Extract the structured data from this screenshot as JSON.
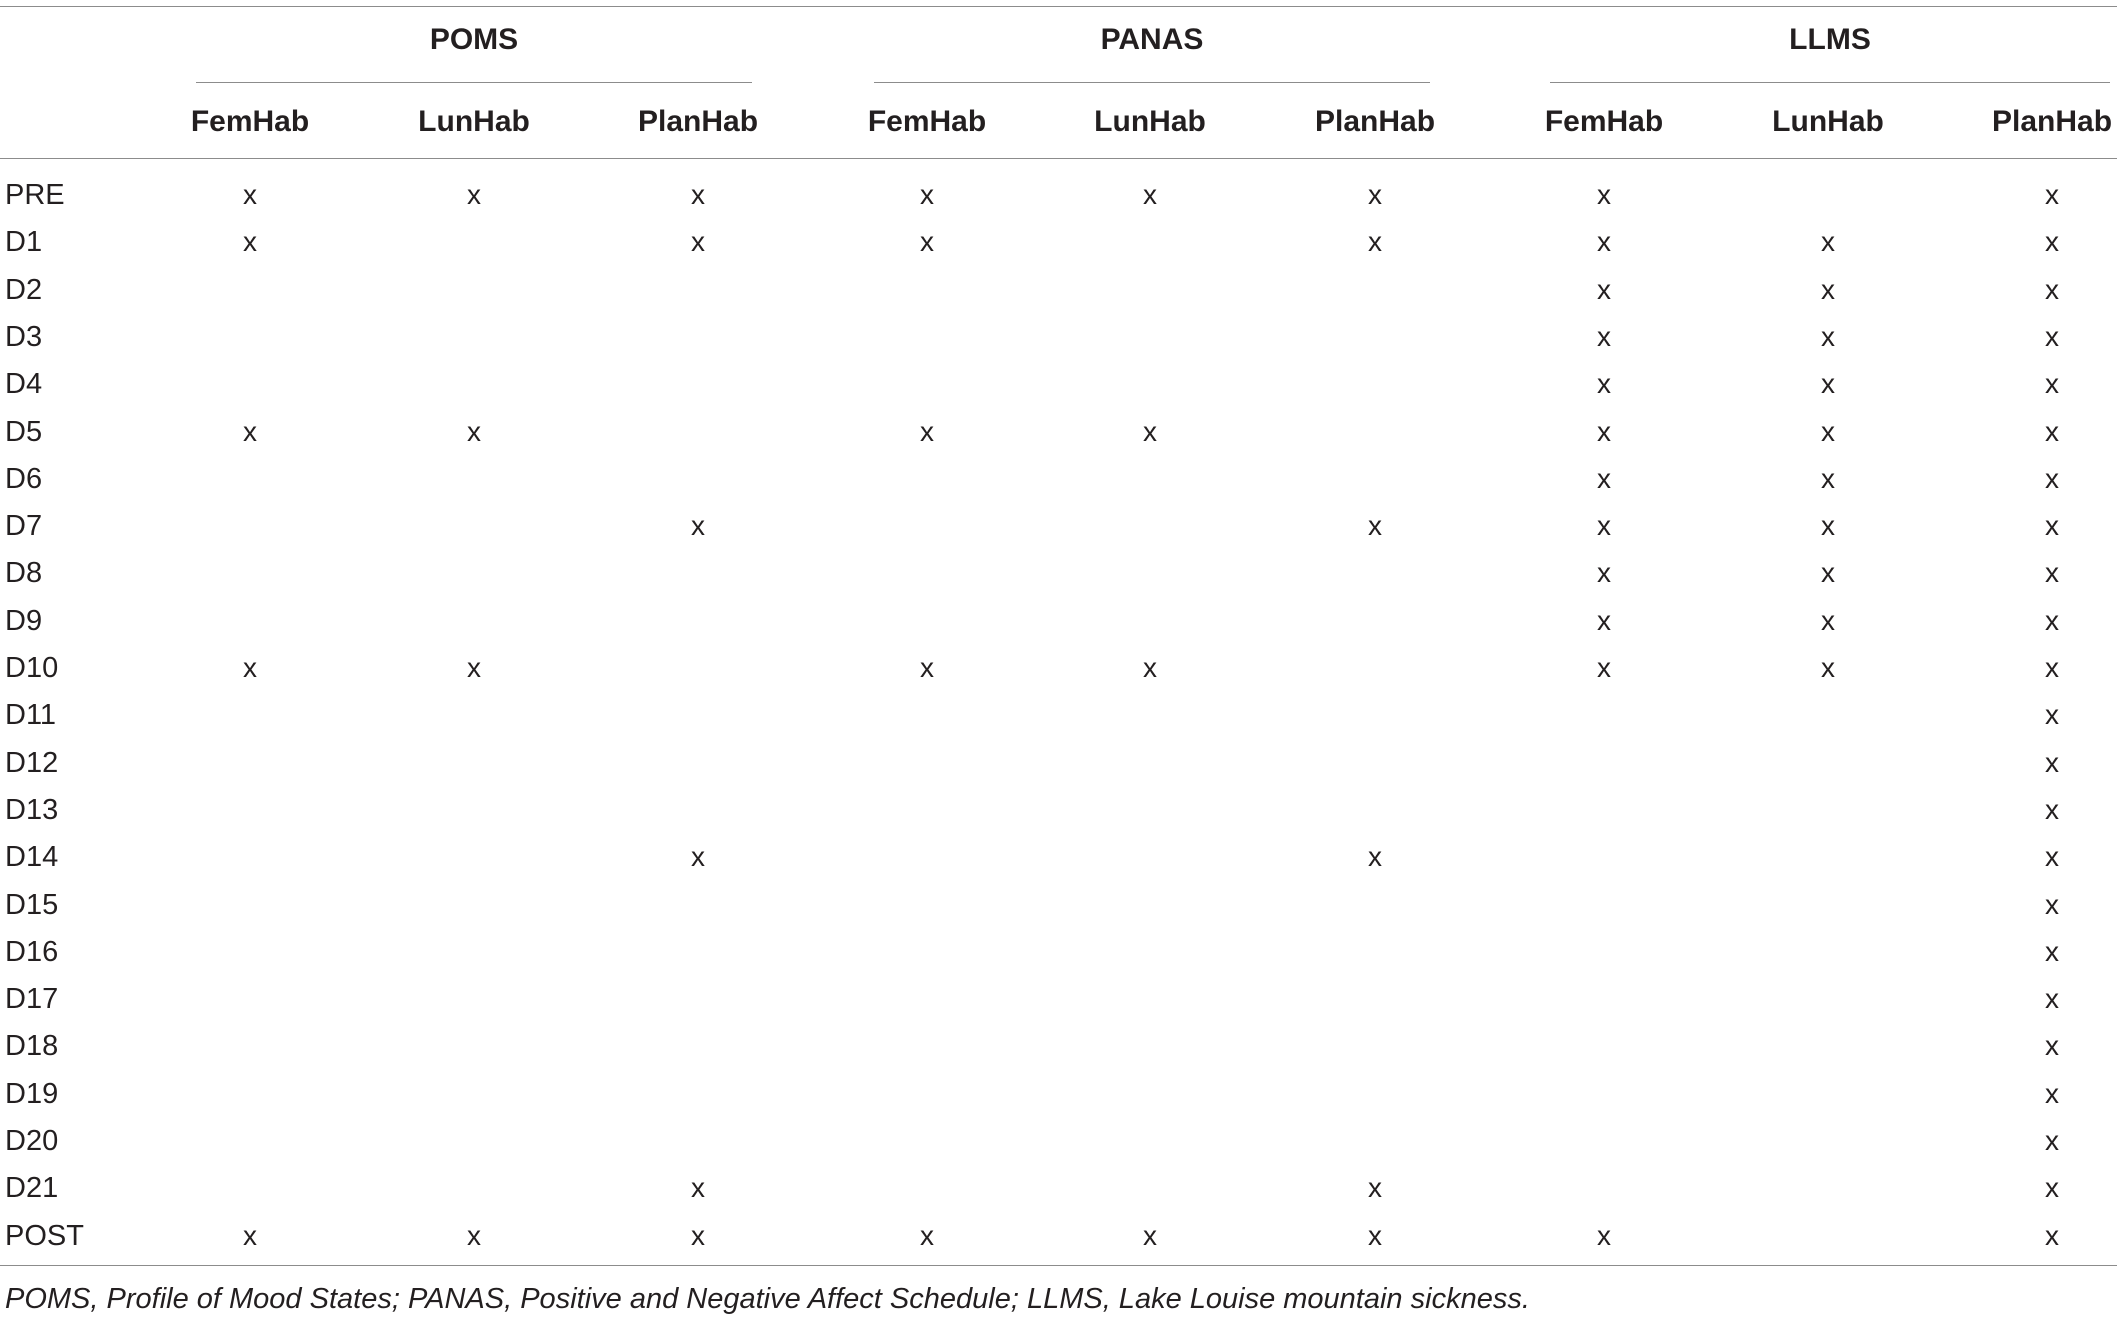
{
  "table": {
    "groups": [
      {
        "label": "POMS",
        "subs": [
          "FemHab",
          "LunHab",
          "PlanHab"
        ]
      },
      {
        "label": "PANAS",
        "subs": [
          "FemHab",
          "LunHab",
          "PlanHab"
        ]
      },
      {
        "label": "LLMS",
        "subs": [
          "FemHab",
          "LunHab",
          "PlanHab"
        ]
      }
    ],
    "mark_symbol": "x",
    "rows": [
      {
        "label": "PRE",
        "marks": [
          1,
          1,
          1,
          1,
          1,
          1,
          1,
          0,
          1
        ]
      },
      {
        "label": "D1",
        "marks": [
          1,
          0,
          1,
          1,
          0,
          1,
          1,
          1,
          1
        ]
      },
      {
        "label": "D2",
        "marks": [
          0,
          0,
          0,
          0,
          0,
          0,
          1,
          1,
          1
        ]
      },
      {
        "label": "D3",
        "marks": [
          0,
          0,
          0,
          0,
          0,
          0,
          1,
          1,
          1
        ]
      },
      {
        "label": "D4",
        "marks": [
          0,
          0,
          0,
          0,
          0,
          0,
          1,
          1,
          1
        ]
      },
      {
        "label": "D5",
        "marks": [
          1,
          1,
          0,
          1,
          1,
          0,
          1,
          1,
          1
        ]
      },
      {
        "label": "D6",
        "marks": [
          0,
          0,
          0,
          0,
          0,
          0,
          1,
          1,
          1
        ]
      },
      {
        "label": "D7",
        "marks": [
          0,
          0,
          1,
          0,
          0,
          1,
          1,
          1,
          1
        ]
      },
      {
        "label": "D8",
        "marks": [
          0,
          0,
          0,
          0,
          0,
          0,
          1,
          1,
          1
        ]
      },
      {
        "label": "D9",
        "marks": [
          0,
          0,
          0,
          0,
          0,
          0,
          1,
          1,
          1
        ]
      },
      {
        "label": "D10",
        "marks": [
          1,
          1,
          0,
          1,
          1,
          0,
          1,
          1,
          1
        ]
      },
      {
        "label": "D11",
        "marks": [
          0,
          0,
          0,
          0,
          0,
          0,
          0,
          0,
          1
        ]
      },
      {
        "label": "D12",
        "marks": [
          0,
          0,
          0,
          0,
          0,
          0,
          0,
          0,
          1
        ]
      },
      {
        "label": "D13",
        "marks": [
          0,
          0,
          0,
          0,
          0,
          0,
          0,
          0,
          1
        ]
      },
      {
        "label": "D14",
        "marks": [
          0,
          0,
          1,
          0,
          0,
          1,
          0,
          0,
          1
        ]
      },
      {
        "label": "D15",
        "marks": [
          0,
          0,
          0,
          0,
          0,
          0,
          0,
          0,
          1
        ]
      },
      {
        "label": "D16",
        "marks": [
          0,
          0,
          0,
          0,
          0,
          0,
          0,
          0,
          1
        ]
      },
      {
        "label": "D17",
        "marks": [
          0,
          0,
          0,
          0,
          0,
          0,
          0,
          0,
          1
        ]
      },
      {
        "label": "D18",
        "marks": [
          0,
          0,
          0,
          0,
          0,
          0,
          0,
          0,
          1
        ]
      },
      {
        "label": "D19",
        "marks": [
          0,
          0,
          0,
          0,
          0,
          0,
          0,
          0,
          1
        ]
      },
      {
        "label": "D20",
        "marks": [
          0,
          0,
          0,
          0,
          0,
          0,
          0,
          0,
          1
        ]
      },
      {
        "label": "D21",
        "marks": [
          0,
          0,
          1,
          0,
          0,
          1,
          0,
          0,
          1
        ]
      },
      {
        "label": "POST",
        "marks": [
          1,
          1,
          1,
          1,
          1,
          1,
          1,
          0,
          1
        ]
      }
    ]
  },
  "footnote": "POMS, Profile of Mood States; PANAS, Positive and Negative Affect Schedule; LLMS, Lake Louise mountain sickness."
}
